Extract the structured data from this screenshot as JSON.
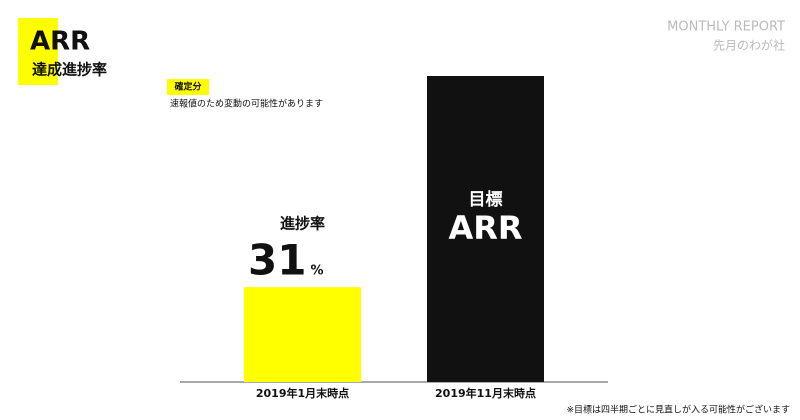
{
  "header": {
    "title": "ARR",
    "subtitle": "達成進捗率",
    "report": "MONTHLY REPORT",
    "company": "先月のわが社"
  },
  "tag": "確定分",
  "note": "速報値のため変動の可能性があります",
  "footnote": "※目標は四半期ごとに見直しが入る可能性がございます",
  "chart_data": {
    "type": "bar",
    "categories": [
      "2019年1月末時点",
      "2019年11月末時点"
    ],
    "values": [
      31,
      100
    ],
    "colors": [
      "#ffff00",
      "#111111"
    ],
    "value_unit": "%",
    "bar_titles": [
      "進捗率",
      "目標"
    ],
    "bar_subtitle": "ARR",
    "ylim": [
      0,
      100
    ]
  }
}
